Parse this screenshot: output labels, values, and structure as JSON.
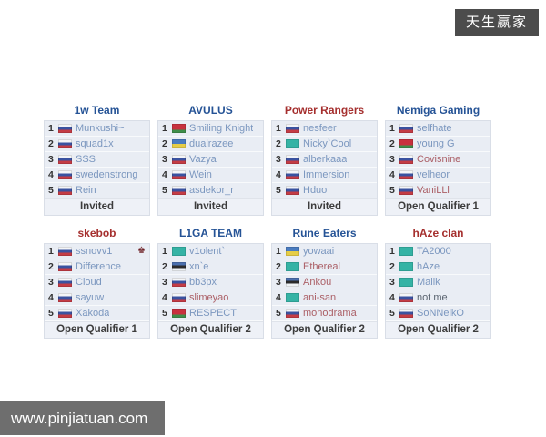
{
  "watermarks": {
    "top_right": "天生赢家",
    "bottom_left": "www.pinjiatuan.com"
  },
  "colors": {
    "header_blue": "#255396",
    "header_red": "#a52f2e",
    "name_blue": "#7b97bf",
    "name_red": "#ab5f66",
    "name_gray": "#5a6470",
    "captain": "#6d1f24"
  },
  "flag_icons": [
    "ru-flag",
    "by-flag",
    "ua-flag",
    "kz-flag",
    "ee-flag"
  ],
  "teams": [
    {
      "name": "1w Team",
      "name_color": "blue",
      "status": "Invited",
      "players": [
        {
          "num": "1",
          "flag": "ru",
          "name": "Munkushi~",
          "color": "blue",
          "captain": false
        },
        {
          "num": "2",
          "flag": "ru",
          "name": "squad1x",
          "color": "blue",
          "captain": false
        },
        {
          "num": "3",
          "flag": "ru",
          "name": "SSS",
          "color": "blue",
          "captain": false
        },
        {
          "num": "4",
          "flag": "ru",
          "name": "swedenstrong",
          "color": "blue",
          "captain": false
        },
        {
          "num": "5",
          "flag": "ru",
          "name": "Rein",
          "color": "blue",
          "captain": false
        }
      ]
    },
    {
      "name": "AVULUS",
      "name_color": "blue",
      "status": "Invited",
      "players": [
        {
          "num": "1",
          "flag": "by",
          "name": "Smiling Knight",
          "color": "blue",
          "captain": false
        },
        {
          "num": "2",
          "flag": "ua",
          "name": "dualrazee",
          "color": "blue",
          "captain": false
        },
        {
          "num": "3",
          "flag": "ru",
          "name": "Vazya",
          "color": "blue",
          "captain": false
        },
        {
          "num": "4",
          "flag": "ru",
          "name": "Wein",
          "color": "blue",
          "captain": false
        },
        {
          "num": "5",
          "flag": "ru",
          "name": "asdekor_r",
          "color": "blue",
          "captain": false
        }
      ]
    },
    {
      "name": "Power Rangers",
      "name_color": "red",
      "status": "Invited",
      "players": [
        {
          "num": "1",
          "flag": "ru",
          "name": "nesfeer",
          "color": "blue",
          "captain": false
        },
        {
          "num": "2",
          "flag": "kz",
          "name": "Nicky`Cool",
          "color": "blue",
          "captain": false
        },
        {
          "num": "3",
          "flag": "ru",
          "name": "alberkaaa",
          "color": "blue",
          "captain": false
        },
        {
          "num": "4",
          "flag": "ru",
          "name": "Immersion",
          "color": "blue",
          "captain": false
        },
        {
          "num": "5",
          "flag": "ru",
          "name": "Hduo",
          "color": "blue",
          "captain": false
        }
      ]
    },
    {
      "name": "Nemiga Gaming",
      "name_color": "blue",
      "status": "Open Qualifier 1",
      "players": [
        {
          "num": "1",
          "flag": "ru",
          "name": "selfhate",
          "color": "blue",
          "captain": false
        },
        {
          "num": "2",
          "flag": "by",
          "name": "young G",
          "color": "blue",
          "captain": false
        },
        {
          "num": "3",
          "flag": "ru",
          "name": "Covisnine",
          "color": "red",
          "captain": false
        },
        {
          "num": "4",
          "flag": "ru",
          "name": "velheor",
          "color": "blue",
          "captain": false
        },
        {
          "num": "5",
          "flag": "ru",
          "name": "VaniLLl",
          "color": "red",
          "captain": false
        }
      ]
    },
    {
      "name": "skebob",
      "name_color": "red",
      "status": "Open Qualifier 1",
      "players": [
        {
          "num": "1",
          "flag": "ru",
          "name": "ssnovv1",
          "color": "blue",
          "captain": true
        },
        {
          "num": "2",
          "flag": "ru",
          "name": "Difference",
          "color": "blue",
          "captain": false
        },
        {
          "num": "3",
          "flag": "ru",
          "name": "Cloud",
          "color": "blue",
          "captain": false
        },
        {
          "num": "4",
          "flag": "ru",
          "name": "sayuw",
          "color": "blue",
          "captain": false
        },
        {
          "num": "5",
          "flag": "ru",
          "name": "Xakoda",
          "color": "blue",
          "captain": false
        }
      ]
    },
    {
      "name": "L1GA TEAM",
      "name_color": "blue",
      "status": "Open Qualifier 2",
      "players": [
        {
          "num": "1",
          "flag": "kz",
          "name": "v1olent`",
          "color": "blue",
          "captain": false
        },
        {
          "num": "2",
          "flag": "ee",
          "name": "xn`e",
          "color": "blue",
          "captain": false
        },
        {
          "num": "3",
          "flag": "ru",
          "name": "bb3px",
          "color": "blue",
          "captain": false
        },
        {
          "num": "4",
          "flag": "ru",
          "name": "slimeyao",
          "color": "red",
          "captain": false
        },
        {
          "num": "5",
          "flag": "by",
          "name": "RESPECT",
          "color": "blue",
          "captain": false
        }
      ]
    },
    {
      "name": "Rune Eaters",
      "name_color": "blue",
      "status": "Open Qualifier 2",
      "players": [
        {
          "num": "1",
          "flag": "ua",
          "name": "yowaai",
          "color": "blue",
          "captain": false
        },
        {
          "num": "2",
          "flag": "kz",
          "name": "Ethereal",
          "color": "red",
          "captain": false
        },
        {
          "num": "3",
          "flag": "ee",
          "name": "Ankou",
          "color": "red",
          "captain": false
        },
        {
          "num": "4",
          "flag": "kz",
          "name": "ani-san",
          "color": "red",
          "captain": false
        },
        {
          "num": "5",
          "flag": "ru",
          "name": "monodrama",
          "color": "red",
          "captain": false
        }
      ]
    },
    {
      "name": "hAze clan",
      "name_color": "red",
      "status": "Open Qualifier 2",
      "players": [
        {
          "num": "1",
          "flag": "kz",
          "name": "TA2000",
          "color": "blue",
          "captain": false
        },
        {
          "num": "2",
          "flag": "kz",
          "name": "hAze",
          "color": "blue",
          "captain": false
        },
        {
          "num": "3",
          "flag": "kz",
          "name": "Malik",
          "color": "blue",
          "captain": false
        },
        {
          "num": "4",
          "flag": "ru",
          "name": "not me",
          "color": "gray",
          "captain": false
        },
        {
          "num": "5",
          "flag": "ru",
          "name": "SoNNeikO",
          "color": "blue",
          "captain": false
        }
      ]
    }
  ]
}
